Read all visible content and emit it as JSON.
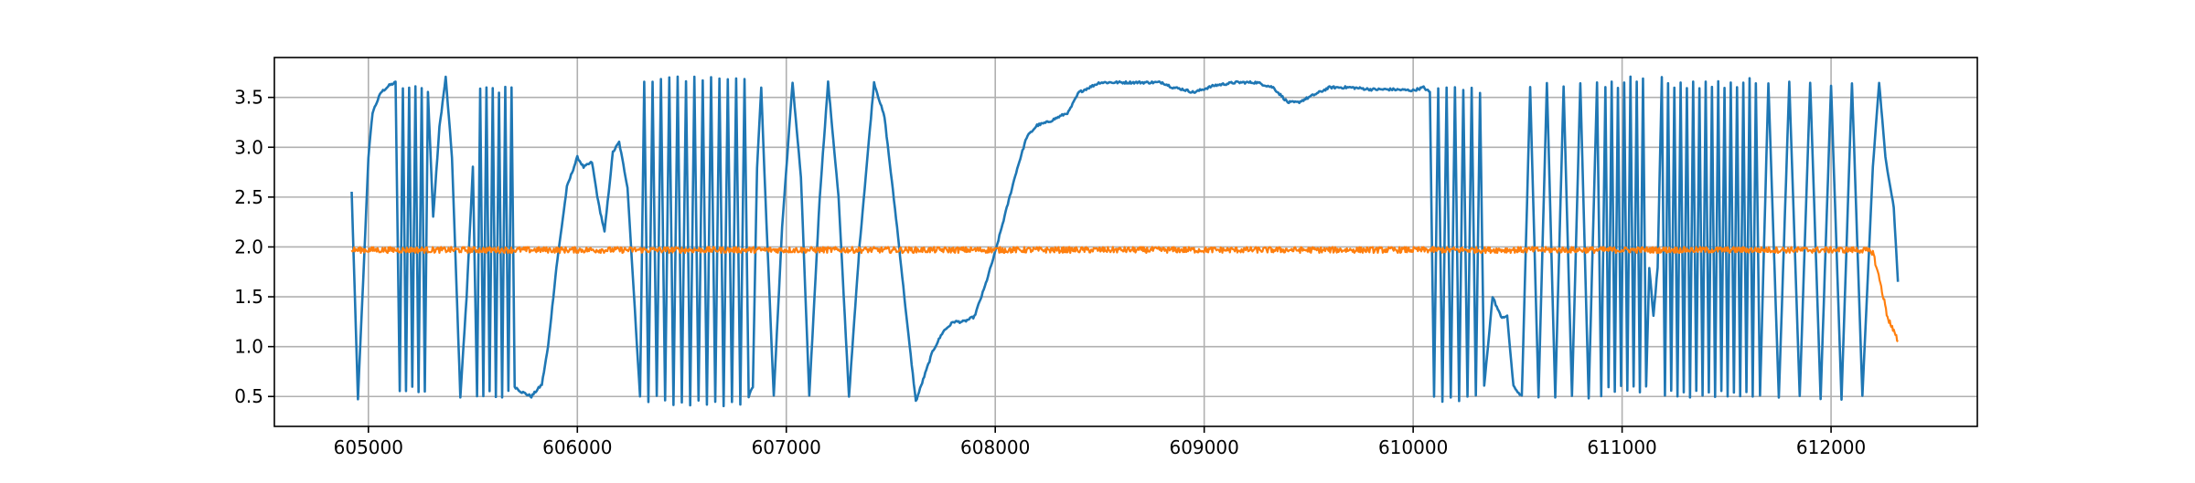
{
  "chart_data": {
    "type": "line",
    "title": "",
    "xlabel": "",
    "ylabel": "",
    "xlim": [
      604550,
      612700
    ],
    "ylim": [
      0.2,
      3.9
    ],
    "grid": true,
    "x_ticks": [
      605000,
      606000,
      607000,
      608000,
      609000,
      610000,
      611000,
      612000
    ],
    "x_tick_labels": [
      "605000",
      "606000",
      "607000",
      "608000",
      "609000",
      "610000",
      "611000",
      "612000"
    ],
    "y_ticks": [
      0.5,
      1.0,
      1.5,
      2.0,
      2.5,
      3.0,
      3.5
    ],
    "y_tick_labels": [
      "0.5",
      "1.0",
      "1.5",
      "2.0",
      "2.5",
      "3.0",
      "3.5"
    ],
    "series": [
      {
        "color": "#1f77b4",
        "points": [
          [
            604920,
            2.55
          ],
          [
            604950,
            0.48
          ],
          [
            604980,
            1.9
          ],
          [
            605000,
            2.9
          ],
          [
            605020,
            3.35
          ],
          [
            605060,
            3.55
          ],
          [
            605100,
            3.62
          ],
          [
            605130,
            3.65
          ],
          [
            605150,
            0.55
          ],
          [
            605165,
            3.6
          ],
          [
            605180,
            0.55
          ],
          [
            605195,
            3.6
          ],
          [
            605210,
            0.6
          ],
          [
            605225,
            3.62
          ],
          [
            605240,
            0.55
          ],
          [
            605255,
            3.6
          ],
          [
            605270,
            0.55
          ],
          [
            605285,
            3.55
          ],
          [
            605310,
            2.3
          ],
          [
            605340,
            3.2
          ],
          [
            605370,
            3.7
          ],
          [
            605400,
            2.9
          ],
          [
            605440,
            0.5
          ],
          [
            605470,
            1.5
          ],
          [
            605500,
            2.8
          ],
          [
            605520,
            0.5
          ],
          [
            605535,
            3.6
          ],
          [
            605550,
            0.5
          ],
          [
            605565,
            3.6
          ],
          [
            605580,
            0.55
          ],
          [
            605595,
            3.6
          ],
          [
            605610,
            0.5
          ],
          [
            605625,
            3.55
          ],
          [
            605640,
            0.5
          ],
          [
            605655,
            3.6
          ],
          [
            605670,
            0.55
          ],
          [
            605685,
            3.6
          ],
          [
            605700,
            0.6
          ],
          [
            605730,
            0.55
          ],
          [
            605780,
            0.5
          ],
          [
            605830,
            0.62
          ],
          [
            605860,
            1.0
          ],
          [
            605900,
            1.8
          ],
          [
            605950,
            2.6
          ],
          [
            606000,
            2.9
          ],
          [
            606030,
            2.8
          ],
          [
            606070,
            2.85
          ],
          [
            606100,
            2.45
          ],
          [
            606130,
            2.15
          ],
          [
            606170,
            2.95
          ],
          [
            606200,
            3.05
          ],
          [
            606240,
            2.6
          ],
          [
            606280,
            1.2
          ],
          [
            606300,
            0.5
          ],
          [
            606320,
            3.65
          ],
          [
            606340,
            0.45
          ],
          [
            606360,
            3.65
          ],
          [
            606380,
            0.5
          ],
          [
            606400,
            3.68
          ],
          [
            606420,
            0.45
          ],
          [
            606440,
            3.7
          ],
          [
            606460,
            0.42
          ],
          [
            606480,
            3.7
          ],
          [
            606500,
            0.45
          ],
          [
            606520,
            3.65
          ],
          [
            606540,
            0.4
          ],
          [
            606560,
            3.7
          ],
          [
            606580,
            0.45
          ],
          [
            606600,
            3.68
          ],
          [
            606620,
            0.42
          ],
          [
            606640,
            3.7
          ],
          [
            606660,
            0.45
          ],
          [
            606680,
            3.7
          ],
          [
            606700,
            0.4
          ],
          [
            606720,
            3.68
          ],
          [
            606740,
            0.45
          ],
          [
            606760,
            3.7
          ],
          [
            606780,
            0.42
          ],
          [
            606800,
            3.68
          ],
          [
            606820,
            0.5
          ],
          [
            606840,
            0.6
          ],
          [
            606860,
            2.8
          ],
          [
            606880,
            3.6
          ],
          [
            606900,
            2.5
          ],
          [
            606940,
            0.5
          ],
          [
            606980,
            2.2
          ],
          [
            607030,
            3.65
          ],
          [
            607070,
            2.7
          ],
          [
            607110,
            0.5
          ],
          [
            607160,
            2.5
          ],
          [
            607200,
            3.65
          ],
          [
            607250,
            2.5
          ],
          [
            607300,
            0.5
          ],
          [
            607350,
            2.0
          ],
          [
            607420,
            3.65
          ],
          [
            607470,
            3.3
          ],
          [
            607530,
            2.2
          ],
          [
            607580,
            1.2
          ],
          [
            607620,
            0.45
          ],
          [
            607660,
            0.7
          ],
          [
            607700,
            0.95
          ],
          [
            607750,
            1.15
          ],
          [
            607800,
            1.25
          ],
          [
            607850,
            1.25
          ],
          [
            607900,
            1.3
          ],
          [
            607950,
            1.6
          ],
          [
            608000,
            1.95
          ],
          [
            608050,
            2.35
          ],
          [
            608100,
            2.75
          ],
          [
            608150,
            3.1
          ],
          [
            608200,
            3.22
          ],
          [
            608250,
            3.25
          ],
          [
            608300,
            3.3
          ],
          [
            608350,
            3.35
          ],
          [
            608400,
            3.55
          ],
          [
            608450,
            3.6
          ],
          [
            608500,
            3.65
          ],
          [
            608600,
            3.65
          ],
          [
            608700,
            3.65
          ],
          [
            608800,
            3.65
          ],
          [
            608850,
            3.6
          ],
          [
            608900,
            3.58
          ],
          [
            608950,
            3.55
          ],
          [
            609050,
            3.62
          ],
          [
            609150,
            3.65
          ],
          [
            609250,
            3.65
          ],
          [
            609330,
            3.6
          ],
          [
            609400,
            3.45
          ],
          [
            609450,
            3.45
          ],
          [
            609500,
            3.5
          ],
          [
            609600,
            3.6
          ],
          [
            609700,
            3.6
          ],
          [
            609800,
            3.58
          ],
          [
            609900,
            3.58
          ],
          [
            610000,
            3.57
          ],
          [
            610050,
            3.6
          ],
          [
            610080,
            3.55
          ],
          [
            610100,
            0.5
          ],
          [
            610120,
            3.6
          ],
          [
            610140,
            0.45
          ],
          [
            610160,
            3.6
          ],
          [
            610180,
            0.5
          ],
          [
            610200,
            3.6
          ],
          [
            610220,
            0.45
          ],
          [
            610240,
            3.58
          ],
          [
            610260,
            0.5
          ],
          [
            610280,
            3.6
          ],
          [
            610300,
            0.5
          ],
          [
            610320,
            3.55
          ],
          [
            610340,
            0.6
          ],
          [
            610380,
            1.5
          ],
          [
            610420,
            1.3
          ],
          [
            610450,
            1.3
          ],
          [
            610480,
            0.6
          ],
          [
            610520,
            0.5
          ],
          [
            610560,
            3.6
          ],
          [
            610600,
            0.5
          ],
          [
            610640,
            3.65
          ],
          [
            610680,
            0.5
          ],
          [
            610720,
            3.6
          ],
          [
            610760,
            0.5
          ],
          [
            610800,
            3.65
          ],
          [
            610840,
            0.48
          ],
          [
            610880,
            3.65
          ],
          [
            610900,
            0.5
          ],
          [
            610920,
            3.6
          ],
          [
            610935,
            0.6
          ],
          [
            610950,
            3.65
          ],
          [
            610965,
            0.55
          ],
          [
            610980,
            3.6
          ],
          [
            610995,
            0.6
          ],
          [
            611010,
            3.65
          ],
          [
            611025,
            0.55
          ],
          [
            611040,
            3.7
          ],
          [
            611055,
            0.6
          ],
          [
            611070,
            3.65
          ],
          [
            611085,
            0.55
          ],
          [
            611100,
            3.7
          ],
          [
            611115,
            0.6
          ],
          [
            611130,
            1.8
          ],
          [
            611150,
            1.3
          ],
          [
            611170,
            1.8
          ],
          [
            611190,
            3.7
          ],
          [
            611205,
            0.5
          ],
          [
            611220,
            3.65
          ],
          [
            611235,
            0.55
          ],
          [
            611250,
            3.6
          ],
          [
            611265,
            0.5
          ],
          [
            611280,
            3.65
          ],
          [
            611295,
            0.55
          ],
          [
            611310,
            3.6
          ],
          [
            611325,
            0.5
          ],
          [
            611340,
            3.65
          ],
          [
            611355,
            0.55
          ],
          [
            611370,
            3.6
          ],
          [
            611385,
            0.5
          ],
          [
            611400,
            3.65
          ],
          [
            611415,
            0.55
          ],
          [
            611430,
            3.6
          ],
          [
            611445,
            0.5
          ],
          [
            611460,
            3.65
          ],
          [
            611475,
            0.55
          ],
          [
            611490,
            3.6
          ],
          [
            611505,
            0.5
          ],
          [
            611520,
            3.65
          ],
          [
            611535,
            0.55
          ],
          [
            611550,
            3.6
          ],
          [
            611565,
            0.5
          ],
          [
            611580,
            3.65
          ],
          [
            611595,
            0.55
          ],
          [
            611610,
            3.7
          ],
          [
            611625,
            0.5
          ],
          [
            611640,
            3.65
          ],
          [
            611660,
            0.5
          ],
          [
            611700,
            3.65
          ],
          [
            611750,
            0.48
          ],
          [
            611800,
            3.65
          ],
          [
            611850,
            0.5
          ],
          [
            611900,
            3.65
          ],
          [
            611950,
            0.48
          ],
          [
            612000,
            3.62
          ],
          [
            612050,
            0.48
          ],
          [
            612100,
            3.65
          ],
          [
            612150,
            0.5
          ],
          [
            612200,
            2.8
          ],
          [
            612230,
            3.65
          ],
          [
            612260,
            2.9
          ],
          [
            612300,
            2.4
          ],
          [
            612320,
            1.65
          ]
        ]
      },
      {
        "color": "#ff7f0e",
        "points": [
          [
            604920,
            1.97
          ],
          [
            612150,
            1.97
          ],
          [
            612200,
            1.95
          ],
          [
            612240,
            1.6
          ],
          [
            612270,
            1.3
          ],
          [
            612300,
            1.15
          ],
          [
            612320,
            1.05
          ]
        ]
      }
    ]
  }
}
